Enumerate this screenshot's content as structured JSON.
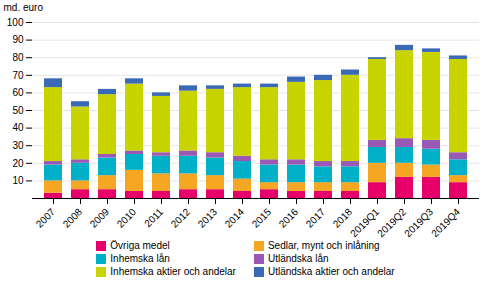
{
  "chart_data": {
    "type": "bar",
    "stacked": true,
    "categories": [
      "2007",
      "2008",
      "2009",
      "2010",
      "2011",
      "2012",
      "2013",
      "2014",
      "2015",
      "2016",
      "2017",
      "2018",
      "2019Q1",
      "2019Q2",
      "2019Q3",
      "2019Q4"
    ],
    "series": [
      {
        "name": "Övriga medel",
        "color": "#e8006a",
        "values": [
          3,
          5,
          5,
          4,
          4,
          5,
          5,
          4,
          5,
          4,
          4,
          4,
          9,
          12,
          12,
          9
        ]
      },
      {
        "name": "Sedlar, mynt och inlåning",
        "color": "#f5a623",
        "values": [
          7,
          5,
          8,
          12,
          10,
          9,
          8,
          7,
          4,
          5,
          5,
          5,
          11,
          8,
          7,
          4
        ]
      },
      {
        "name": "Inhemska lån",
        "color": "#00b0c8",
        "values": [
          9,
          10,
          10,
          9,
          10,
          10,
          10,
          10,
          10,
          10,
          9,
          9,
          9,
          9,
          9,
          9
        ]
      },
      {
        "name": "Utländska lån",
        "color": "#9b59b6",
        "values": [
          2,
          2,
          2,
          2,
          2,
          3,
          3,
          3,
          3,
          3,
          3,
          3,
          4,
          5,
          5,
          4
        ]
      },
      {
        "name": "Inhemska aktier och andelar",
        "color": "#c8d400",
        "values": [
          42,
          30,
          34,
          38,
          32,
          34,
          36,
          39,
          41,
          44,
          46,
          49,
          46,
          50,
          50,
          53
        ]
      },
      {
        "name": "Utländska aktier och andelar",
        "color": "#3a6ab5",
        "values": [
          5,
          3,
          3,
          3,
          2,
          3,
          2,
          2,
          2,
          3,
          3,
          3,
          1,
          3,
          2,
          2
        ]
      }
    ],
    "ylabel": "md. euro",
    "ylim": [
      0,
      100
    ],
    "yticks": [
      10,
      20,
      30,
      40,
      50,
      60,
      70,
      80,
      90,
      100
    ],
    "grid": true,
    "legend": "bottom"
  }
}
